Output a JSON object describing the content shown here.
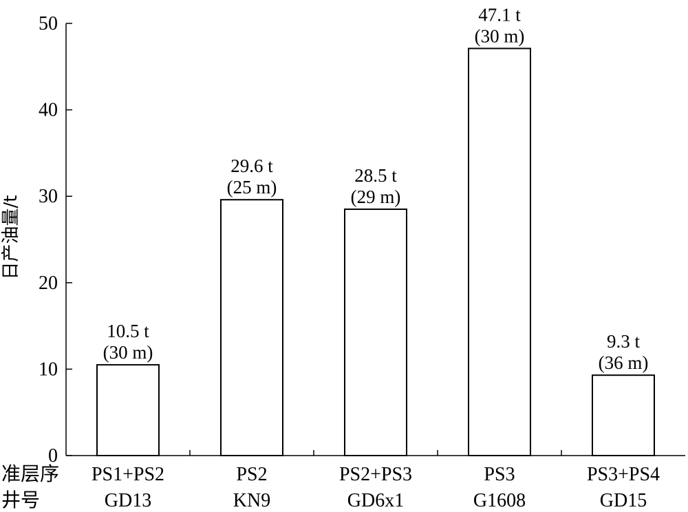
{
  "chart_data": {
    "type": "bar",
    "ylabel": "日产油量/t",
    "ylim": [
      0,
      50
    ],
    "yticks": [
      0,
      10,
      20,
      30,
      40,
      50
    ],
    "row_headers": [
      "准层序",
      "井号"
    ],
    "categories": [
      {
        "layer": "PS1+PS2",
        "well": "GD13"
      },
      {
        "layer": "PS2",
        "well": "KN9"
      },
      {
        "layer": "PS2+PS3",
        "well": "GD6x1"
      },
      {
        "layer": "PS3",
        "well": "G1608"
      },
      {
        "layer": "PS3+PS4",
        "well": "GD15"
      }
    ],
    "values": [
      10.5,
      29.6,
      28.5,
      47.1,
      9.3
    ],
    "labels": [
      {
        "value": "10.5 t",
        "depth": "(30 m)"
      },
      {
        "value": "29.6 t",
        "depth": "(25 m)"
      },
      {
        "value": "28.5 t",
        "depth": "(29 m)"
      },
      {
        "value": "47.1 t",
        "depth": "(30 m)"
      },
      {
        "value": "9.3 t",
        "depth": "(36 m)"
      }
    ],
    "grid": false,
    "bar_fill": "#ffffff",
    "bar_stroke": "#000000"
  }
}
